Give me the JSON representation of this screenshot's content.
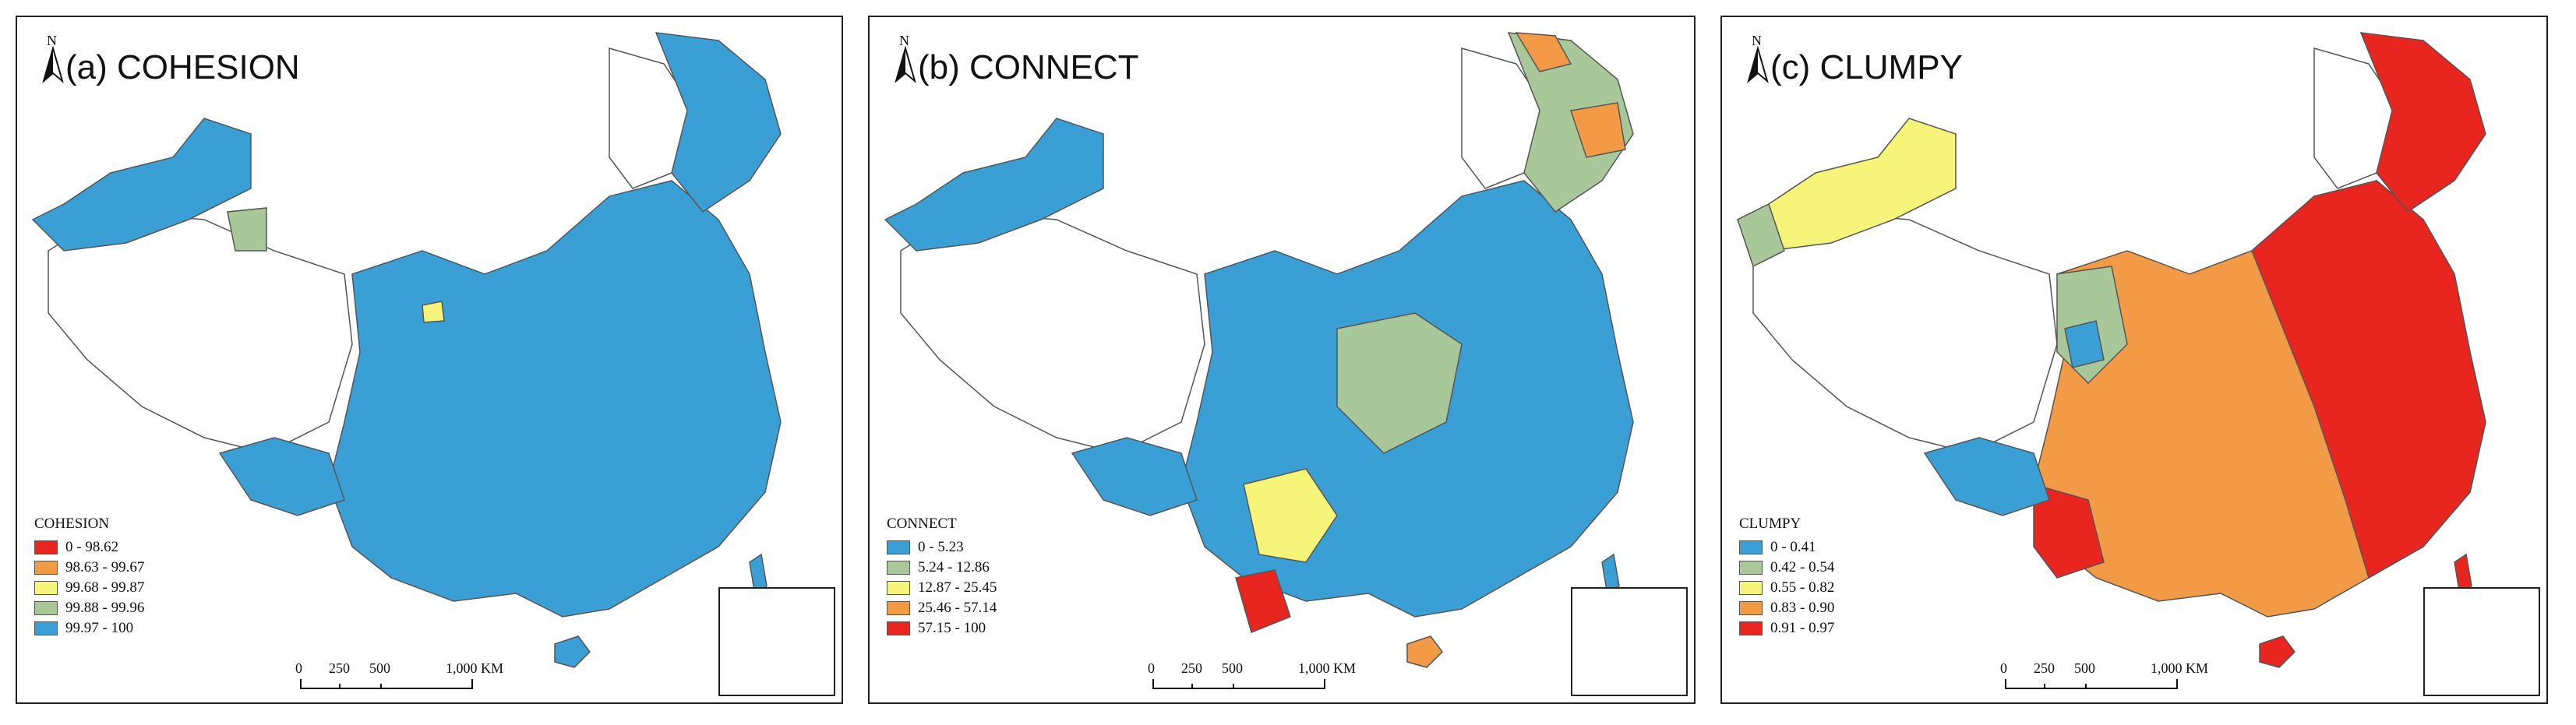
{
  "north_label": "N",
  "scale": {
    "labels": [
      "0",
      "250",
      "500",
      "1,000 KM"
    ]
  },
  "panels": [
    {
      "title": "(a) COHESION",
      "legend_title": "COHESION",
      "classes": [
        {
          "label": "0 - 98.62",
          "color": "#e8261f"
        },
        {
          "label": "98.63 - 99.67",
          "color": "#f39a47"
        },
        {
          "label": "99.68 - 99.87",
          "color": "#f7f47a"
        },
        {
          "label": "99.88 - 99.96",
          "color": "#a9c89a"
        },
        {
          "label": "99.97 - 100",
          "color": "#3a9fd4"
        }
      ],
      "dominant_color": "#3a9fd4"
    },
    {
      "title": "(b) CONNECT",
      "legend_title": "CONNECT",
      "classes": [
        {
          "label": "0 - 5.23",
          "color": "#3a9fd4"
        },
        {
          "label": "5.24 - 12.86",
          "color": "#a9c89a"
        },
        {
          "label": "12.87 - 25.45",
          "color": "#f7f47a"
        },
        {
          "label": "25.46 - 57.14",
          "color": "#f39a47"
        },
        {
          "label": "57.15 - 100",
          "color": "#e8261f"
        }
      ],
      "dominant_color": "#3a9fd4"
    },
    {
      "title": "(c) CLUMPY",
      "legend_title": "CLUMPY",
      "classes": [
        {
          "label": "0 - 0.41",
          "color": "#3a9fd4"
        },
        {
          "label": "0.42 - 0.54",
          "color": "#a9c89a"
        },
        {
          "label": "0.55 - 0.82",
          "color": "#f7f47a"
        },
        {
          "label": "0.83 - 0.90",
          "color": "#f39a47"
        },
        {
          "label": "0.91 - 0.97",
          "color": "#e8261f"
        }
      ],
      "dominant_color": "#f39a47"
    }
  ]
}
